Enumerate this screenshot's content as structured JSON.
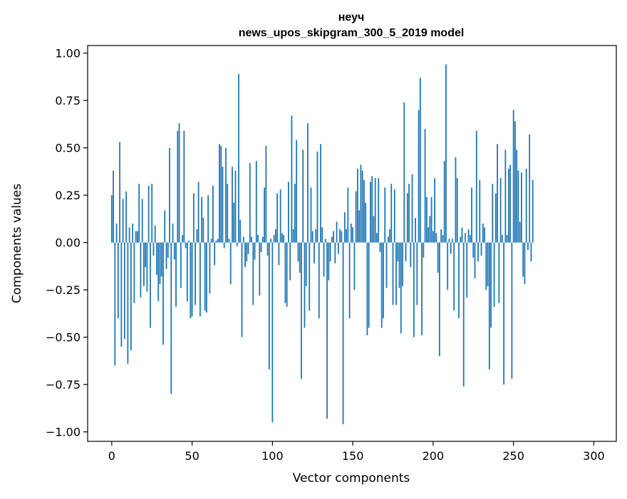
{
  "chart_data": {
    "type": "bar",
    "title": "неуч",
    "subtitle": "news_upos_skipgram_300_5_2019 model",
    "xlabel": "Vector components",
    "ylabel": "Components values",
    "xlim": [
      -15,
      314
    ],
    "ylim": [
      -1.05,
      1.04
    ],
    "xticks": [
      0,
      50,
      100,
      150,
      200,
      250,
      300
    ],
    "xtick_labels": [
      "0",
      "50",
      "100",
      "150",
      "200",
      "250",
      "300"
    ],
    "yticks": [
      1.0,
      0.75,
      0.5,
      0.25,
      0.0,
      -0.25,
      -0.5,
      -0.75,
      -1.0
    ],
    "ytick_labels": [
      "1.00",
      "0.75",
      "0.50",
      "0.25",
      "0.00",
      "−0.25",
      "−0.50",
      "−0.75",
      "−1.00"
    ],
    "bar_color": "#1f77b4",
    "values": [
      0.25,
      0.38,
      -0.65,
      0.1,
      -0.4,
      0.53,
      -0.55,
      0.23,
      -0.51,
      0.27,
      -0.64,
      0.08,
      -0.57,
      0.1,
      -0.32,
      0.06,
      0.06,
      0.31,
      -0.29,
      0.23,
      -0.23,
      -0.13,
      -0.26,
      0.3,
      -0.45,
      0.31,
      -0.07,
      0.09,
      -0.17,
      -0.31,
      -0.22,
      -0.18,
      -0.54,
      0.17,
      -0.14,
      -0.08,
      0.5,
      -0.8,
      0.1,
      -0.09,
      -0.34,
      0.59,
      0.63,
      -0.24,
      0.04,
      0.59,
      -0.03,
      -0.31,
      0.01,
      -0.4,
      -0.39,
      0.26,
      -0.33,
      0.07,
      0.32,
      -0.39,
      0.24,
      0.13,
      -0.36,
      -0.37,
      0.25,
      -0.27,
      0.02,
      0.3,
      -0.12,
      0.01,
      0.02,
      0.52,
      0.51,
      0.4,
      -0.03,
      0.5,
      0.31,
      0.02,
      -0.22,
      0.4,
      0.21,
      0.38,
      -0.02,
      0.89,
      0.12,
      -0.5,
      0.03,
      -0.13,
      -0.1,
      -0.06,
      0.42,
      0.03,
      -0.33,
      -0.09,
      0.43,
      0.04,
      -0.28,
      -0.05,
      0.03,
      0.29,
      0.51,
      -0.07,
      -0.67,
      0.02,
      -0.95,
      0.04,
      0.07,
      0.26,
      -0.12,
      0.28,
      0.05,
      0.04,
      -0.32,
      -0.34,
      0.32,
      -0.2,
      0.67,
      0.07,
      0.31,
      0.54,
      -0.1,
      -0.16,
      -0.72,
      0.49,
      -0.45,
      -0.23,
      0.63,
      -0.36,
      0.29,
      0.06,
      -0.11,
      0.07,
      0.48,
      -0.4,
      0.52,
      0.08,
      -0.18,
      0.02,
      -0.93,
      -0.2,
      -0.1,
      0.03,
      0.06,
      -0.11,
      0.11,
      -0.06,
      0.07,
      0.06,
      -0.96,
      0.16,
      0.07,
      0.29,
      -0.4,
      0.1,
      0.08,
      -0.25,
      0.27,
      0.39,
      0.17,
      0.41,
      0.38,
      0.33,
      0.21,
      -0.49,
      -0.45,
      0.32,
      0.35,
      0.14,
      0.34,
      0.05,
      0.34,
      -0.05,
      -0.45,
      -0.4,
      0.29,
      -0.24,
      0.03,
      0.07,
      0.31,
      -0.33,
      0.28,
      -0.33,
      -0.1,
      -0.24,
      -0.48,
      -0.23,
      0.74,
      -0.1,
      0.26,
      0.31,
      -0.13,
      0.36,
      -0.5,
      0.13,
      -0.33,
      0.7,
      0.87,
      -0.49,
      -0.08,
      0.6,
      0.24,
      0.08,
      0.14,
      0.24,
      0.06,
      0.34,
      0.05,
      -0.16,
      -0.6,
      0.07,
      0.04,
      0.43,
      0.94,
      -0.25,
      0.02,
      -0.06,
      0.02,
      -0.36,
      0.45,
      0.34,
      -0.4,
      0.03,
      0.08,
      -0.76,
      0.05,
      -0.29,
      0.07,
      0.04,
      0.29,
      -0.08,
      -0.19,
      0.59,
      -0.1,
      0.33,
      -0.07,
      0.1,
      0.08,
      -0.25,
      -0.23,
      -0.67,
      -0.45,
      0.31,
      -0.34,
      0.26,
      0.52,
      -0.32,
      0.34,
      0.04,
      -0.75,
      0.49,
      0.04,
      0.39,
      0.41,
      -0.72,
      0.7,
      0.64,
      0.49,
      0.38,
      0.11,
      0.37,
      -0.18,
      -0.22,
      0.39,
      -0.04,
      0.57,
      -0.1,
      0.33
    ]
  }
}
